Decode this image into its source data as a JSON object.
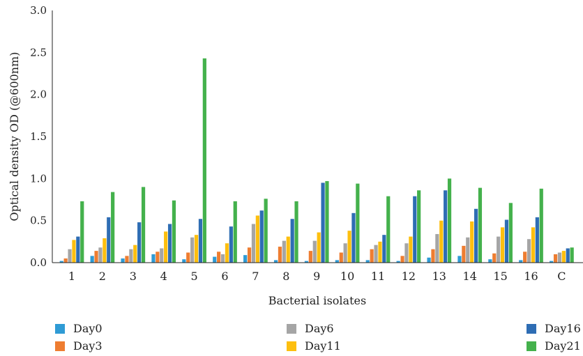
{
  "chart_data": {
    "type": "bar",
    "title": "",
    "xlabel": "Bacterial isolates",
    "ylabel": "Optical density OD (@600nm)",
    "ylim": [
      0,
      3.0
    ],
    "yticks": [
      "0.0",
      "0.5",
      "1.0",
      "1.5",
      "2.0",
      "2.5",
      "3.0"
    ],
    "grid": false,
    "legend_position": "bottom",
    "categories": [
      "1",
      "2",
      "3",
      "4",
      "5",
      "6",
      "7",
      "8",
      "9",
      "10",
      "11",
      "12",
      "13",
      "14",
      "15",
      "16",
      "C"
    ],
    "series": [
      {
        "name": "Day0",
        "color": "#2F9BD5",
        "values": [
          0.02,
          0.08,
          0.05,
          0.1,
          0.04,
          0.07,
          0.09,
          0.03,
          0.02,
          0.03,
          0.03,
          0.02,
          0.06,
          0.08,
          0.04,
          0.03,
          0.02
        ]
      },
      {
        "name": "Day3",
        "color": "#EE7D31",
        "values": [
          0.05,
          0.14,
          0.08,
          0.13,
          0.12,
          0.13,
          0.18,
          0.19,
          0.14,
          0.12,
          0.16,
          0.08,
          0.16,
          0.2,
          0.11,
          0.13,
          0.1
        ]
      },
      {
        "name": "Day6",
        "color": "#A5A5A5",
        "values": [
          0.16,
          0.18,
          0.16,
          0.17,
          0.3,
          0.1,
          0.46,
          0.26,
          0.26,
          0.23,
          0.21,
          0.23,
          0.34,
          0.3,
          0.31,
          0.28,
          0.12
        ]
      },
      {
        "name": "Day11",
        "color": "#FDBF0F",
        "values": [
          0.27,
          0.29,
          0.21,
          0.37,
          0.33,
          0.23,
          0.56,
          0.31,
          0.36,
          0.38,
          0.25,
          0.31,
          0.5,
          0.49,
          0.42,
          0.42,
          0.14
        ]
      },
      {
        "name": "Day16",
        "color": "#2E6DB4",
        "values": [
          0.31,
          0.54,
          0.48,
          0.46,
          0.52,
          0.43,
          0.62,
          0.52,
          0.95,
          0.59,
          0.33,
          0.79,
          0.86,
          0.64,
          0.51,
          0.54,
          0.17
        ]
      },
      {
        "name": "Day21",
        "color": "#44B14C",
        "values": [
          0.73,
          0.84,
          0.9,
          0.74,
          2.43,
          0.73,
          0.76,
          0.73,
          0.97,
          0.94,
          0.79,
          0.86,
          1.0,
          0.89,
          0.71,
          0.88,
          0.18
        ]
      }
    ]
  }
}
